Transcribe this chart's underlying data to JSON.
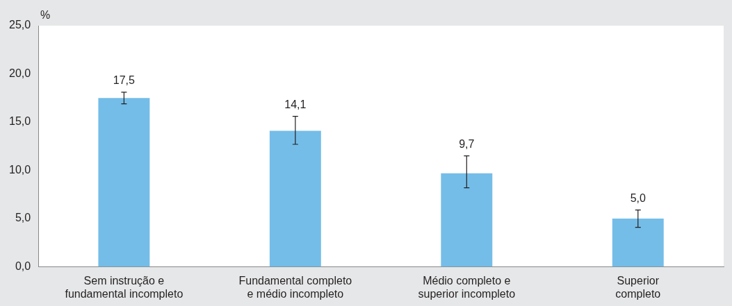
{
  "chart_data": {
    "type": "bar",
    "ylabel": "%",
    "categories": [
      "Sem instrução e\nfundamental incompleto",
      "Fundamental completo\ne médio incompleto",
      "Médio completo e\nsuperior incompleto",
      "Superior\ncompleto"
    ],
    "values": [
      17.5,
      14.1,
      9.7,
      5.0
    ],
    "value_labels": [
      "17,5",
      "14,1",
      "9,7",
      "5,0"
    ],
    "errors": [
      [
        16.9,
        18.1
      ],
      [
        12.7,
        15.6
      ],
      [
        8.2,
        11.5
      ],
      [
        4.1,
        5.9
      ]
    ],
    "color": "#74bde8",
    "ylim": [
      0,
      25
    ],
    "yticks": [
      {
        "value": 0,
        "label": "0,0"
      },
      {
        "value": 5,
        "label": "5,0"
      },
      {
        "value": 10,
        "label": "10,0"
      },
      {
        "value": 15,
        "label": "15,0"
      },
      {
        "value": 20,
        "label": "20,0"
      },
      {
        "value": 25,
        "label": "25,0"
      }
    ],
    "grid": false,
    "legend": false
  }
}
